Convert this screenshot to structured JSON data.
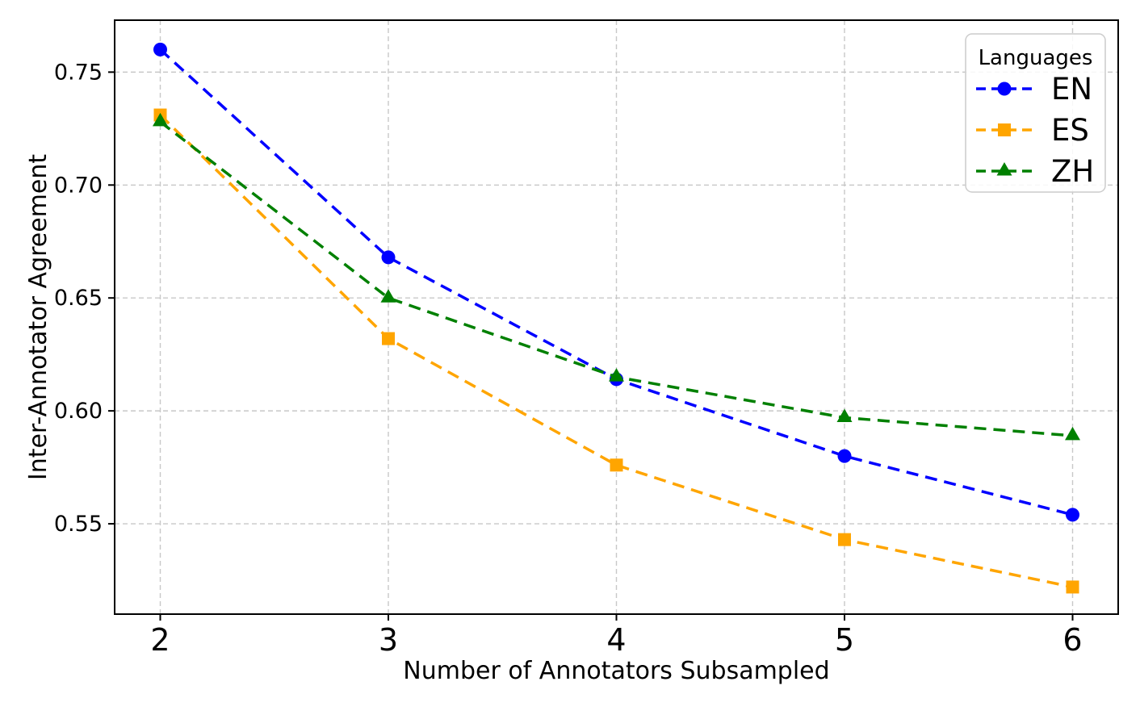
{
  "chart_data": {
    "type": "line",
    "title": "",
    "xlabel": "Number of Annotators Subsampled",
    "ylabel": "Inter-Annotator Agreement",
    "x": [
      2,
      3,
      4,
      5,
      6
    ],
    "xtick_labels": [
      "2",
      "3",
      "4",
      "5",
      "6"
    ],
    "yticks": [
      0.55,
      0.6,
      0.65,
      0.7,
      0.75
    ],
    "ytick_labels": [
      "0.55",
      "0.60",
      "0.65",
      "0.70",
      "0.75"
    ],
    "xlim": [
      1.8,
      6.2
    ],
    "ylim": [
      0.51,
      0.773
    ],
    "grid": true,
    "grid_style": "dashed",
    "line_style": "dashed",
    "legend_title": "Languages",
    "legend_position": "upper right",
    "series": [
      {
        "name": "EN",
        "color": "#0000ff",
        "marker": "circle",
        "values": [
          0.76,
          0.668,
          0.614,
          0.58,
          0.554
        ]
      },
      {
        "name": "ES",
        "color": "#ffa500",
        "marker": "square",
        "values": [
          0.731,
          0.632,
          0.576,
          0.543,
          0.522
        ]
      },
      {
        "name": "ZH",
        "color": "#008000",
        "marker": "triangle",
        "values": [
          0.728,
          0.65,
          0.615,
          0.597,
          0.589
        ]
      }
    ],
    "colors": {
      "grid": "#c8c8c8",
      "axis": "#000000",
      "legend_border": "#cccccc",
      "background": "#ffffff"
    }
  }
}
